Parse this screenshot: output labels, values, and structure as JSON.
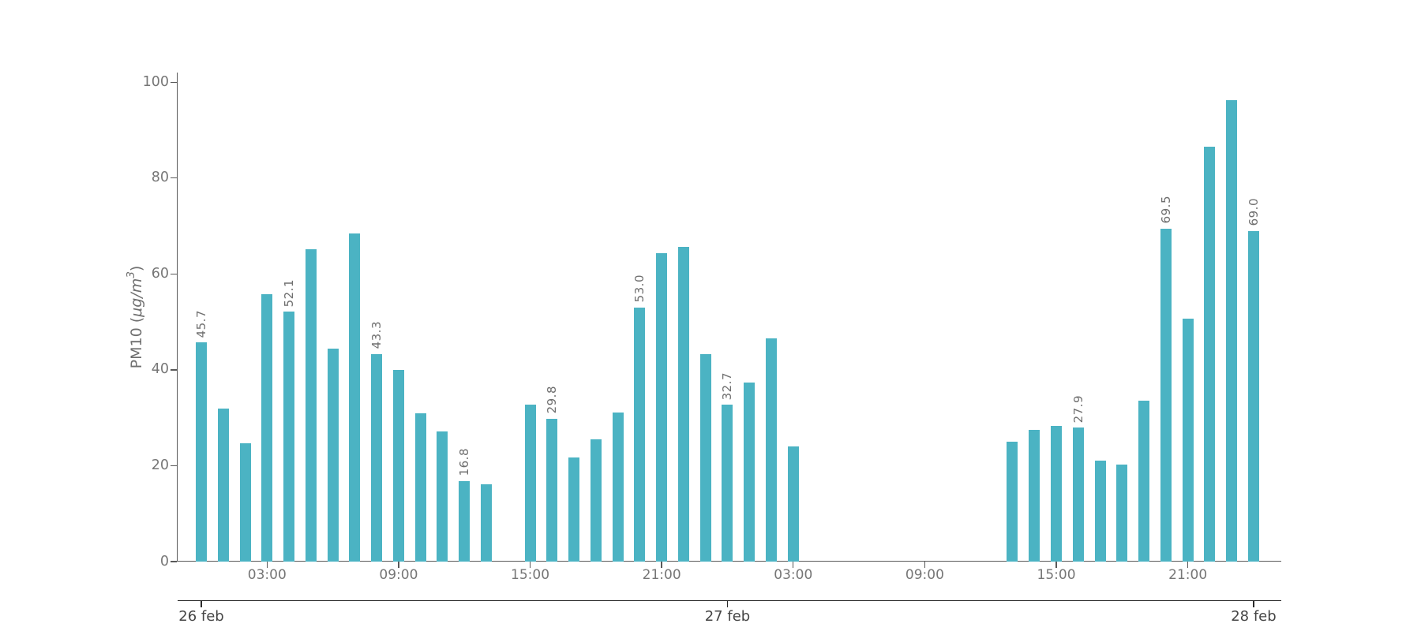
{
  "chart_data": {
    "type": "bar",
    "title": "",
    "ylabel": {
      "prefix": "PM10 (",
      "italic": "μg/m",
      "sup": "3",
      "suffix": ")"
    },
    "ylabel_text": "PM10 (μg/m³)",
    "ylim": [
      0,
      100
    ],
    "yticks": [
      0,
      20,
      40,
      60,
      80,
      100
    ],
    "x_hour_range": [
      -1.1,
      49.3
    ],
    "grid": "off",
    "legend": "none",
    "bar_color": "#4bb3c3",
    "colors": {
      "bar": "#4bb3c3",
      "tick_text": "#767676",
      "date_text": "#454545",
      "spine": "#595959",
      "date_line": "#2a2a2a",
      "background": "#ffffff"
    },
    "time_ticks": [
      {
        "hour": 3,
        "label": "03:00"
      },
      {
        "hour": 9,
        "label": "09:00"
      },
      {
        "hour": 15,
        "label": "15:00"
      },
      {
        "hour": 21,
        "label": "21:00"
      },
      {
        "hour": 27,
        "label": "03:00"
      },
      {
        "hour": 33,
        "label": "09:00"
      },
      {
        "hour": 39,
        "label": "15:00"
      },
      {
        "hour": 45,
        "label": "21:00"
      }
    ],
    "date_ticks": [
      {
        "hour": 0,
        "label": "26 feb"
      },
      {
        "hour": 24,
        "label": "27 feb"
      },
      {
        "hour": 48,
        "label": "28 feb"
      }
    ],
    "bars": [
      {
        "hour": 0,
        "value": 45.7,
        "label": "45.7"
      },
      {
        "hour": 1,
        "value": 32.0,
        "label": ""
      },
      {
        "hour": 2,
        "value": 24.7,
        "label": ""
      },
      {
        "hour": 3,
        "value": 55.8,
        "label": ""
      },
      {
        "hour": 4,
        "value": 52.1,
        "label": "52.1"
      },
      {
        "hour": 5,
        "value": 65.1,
        "label": ""
      },
      {
        "hour": 6,
        "value": 44.5,
        "label": ""
      },
      {
        "hour": 7,
        "value": 68.5,
        "label": ""
      },
      {
        "hour": 8,
        "value": 43.3,
        "label": "43.3"
      },
      {
        "hour": 9,
        "value": 39.9,
        "label": ""
      },
      {
        "hour": 10,
        "value": 31.0,
        "label": ""
      },
      {
        "hour": 11,
        "value": 27.2,
        "label": ""
      },
      {
        "hour": 12,
        "value": 16.8,
        "label": "16.8"
      },
      {
        "hour": 13,
        "value": 16.2,
        "label": ""
      },
      {
        "hour": 15,
        "value": 32.8,
        "label": ""
      },
      {
        "hour": 16,
        "value": 29.8,
        "label": "29.8"
      },
      {
        "hour": 17,
        "value": 21.7,
        "label": ""
      },
      {
        "hour": 18,
        "value": 25.5,
        "label": ""
      },
      {
        "hour": 19,
        "value": 31.1,
        "label": ""
      },
      {
        "hour": 20,
        "value": 53.0,
        "label": "53.0"
      },
      {
        "hour": 21,
        "value": 64.4,
        "label": ""
      },
      {
        "hour": 22,
        "value": 65.7,
        "label": ""
      },
      {
        "hour": 23,
        "value": 43.3,
        "label": ""
      },
      {
        "hour": 24,
        "value": 32.7,
        "label": "32.7"
      },
      {
        "hour": 25,
        "value": 37.4,
        "label": ""
      },
      {
        "hour": 26,
        "value": 46.6,
        "label": ""
      },
      {
        "hour": 27,
        "value": 24.0,
        "label": ""
      },
      {
        "hour": 37,
        "value": 25.0,
        "label": ""
      },
      {
        "hour": 38,
        "value": 27.4,
        "label": ""
      },
      {
        "hour": 39,
        "value": 28.3,
        "label": ""
      },
      {
        "hour": 40,
        "value": 27.9,
        "label": "27.9"
      },
      {
        "hour": 41,
        "value": 21.1,
        "label": ""
      },
      {
        "hour": 42,
        "value": 20.3,
        "label": ""
      },
      {
        "hour": 43,
        "value": 33.6,
        "label": ""
      },
      {
        "hour": 44,
        "value": 69.5,
        "label": "69.5"
      },
      {
        "hour": 45,
        "value": 50.7,
        "label": ""
      },
      {
        "hour": 46,
        "value": 86.5,
        "label": ""
      },
      {
        "hour": 47,
        "value": 96.3,
        "label": ""
      },
      {
        "hour": 48,
        "value": 69.0,
        "label": "69.0"
      }
    ]
  }
}
